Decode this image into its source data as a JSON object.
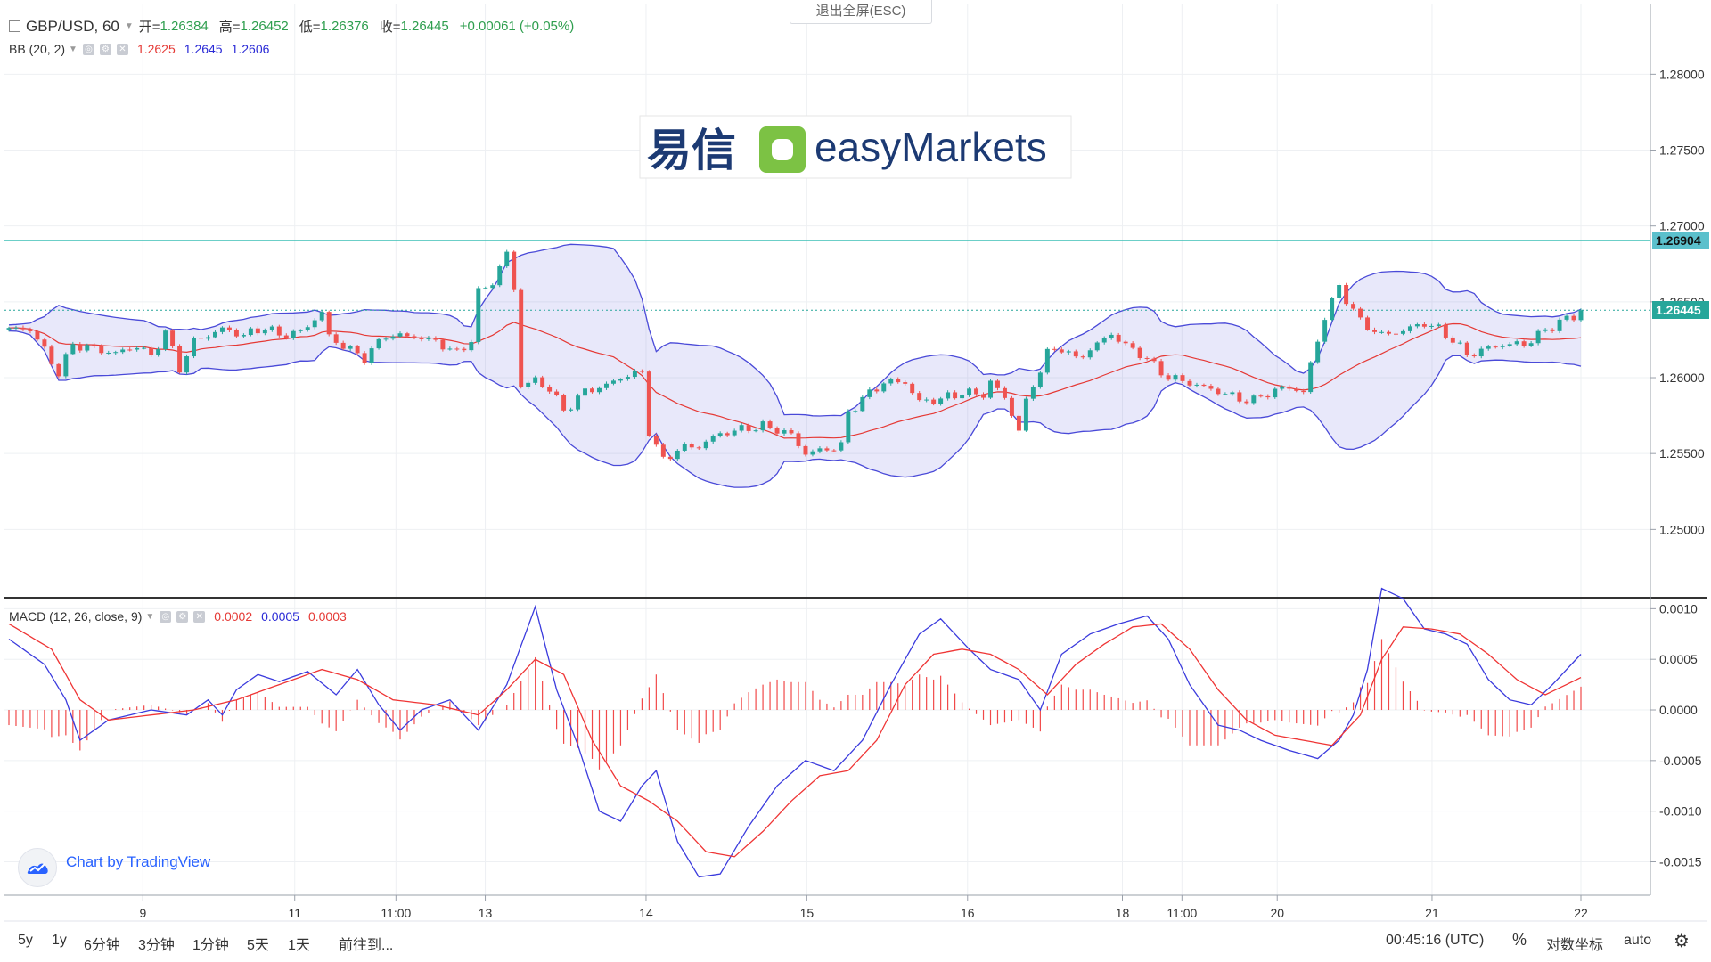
{
  "header": {
    "symbol": "GBP/USD, 60",
    "open_label": "开=",
    "open": "1.26384",
    "high_label": "高=",
    "high": "1.26452",
    "low_label": "低=",
    "low": "1.26376",
    "close_label": "收=",
    "close": "1.26445",
    "change": "+0.00061 (+0.05%)",
    "fullscreen_exit": "退出全屏(ESC)"
  },
  "bb_legend": {
    "name": "BB (20, 2)",
    "v1": "1.2625",
    "v2": "1.2645",
    "v3": "1.2606"
  },
  "macd_legend": {
    "name": "MACD (12, 26, close, 9)",
    "v1": "0.0002",
    "v2": "0.0005",
    "v3": "0.0003"
  },
  "watermark": {
    "brand_cn": "易信",
    "brand_en": "easyMarkets"
  },
  "attribution": "Chart by TradingView",
  "bottom_bar": {
    "ranges": [
      "5y",
      "1y",
      "6分钟",
      "3分钟",
      "1分钟",
      "5天",
      "1天"
    ],
    "goto": "前往到...",
    "clock": "00:45:16 (UTC)",
    "percent": "%",
    "log": "对数坐标",
    "auto": "auto"
  },
  "colors": {
    "up": "#26a69a",
    "down": "#ef5350",
    "bb_band": "#5b5bdb",
    "bb_basis": "#e53935",
    "macd_line": "#3b3bdd",
    "signal_line": "#ef3535",
    "hline": "#3bbfb5"
  },
  "chart_data": [
    {
      "type": "candlestick",
      "title": "GBP/USD, 60",
      "x_ticks": [
        "9",
        "11",
        "11:00",
        "13",
        "14",
        "15",
        "16",
        "18",
        "11:00",
        "20",
        "21",
        "22"
      ],
      "y_ticks": [
        "1.28000",
        "1.27500",
        "1.27000",
        "1.26500",
        "1.26000",
        "1.25500",
        "1.25000"
      ],
      "ylim": [
        1.2455,
        1.2846
      ],
      "horizontal_line": {
        "value": 1.26904,
        "label": "1.26904"
      },
      "last_price": {
        "value": 1.26445,
        "label": "1.26445"
      },
      "close_path": [
        [
          0,
          1.2632
        ],
        [
          3,
          1.2632
        ],
        [
          5,
          1.2618
        ],
        [
          7,
          1.2603
        ],
        [
          9,
          1.2622
        ],
        [
          12,
          1.2619
        ],
        [
          15,
          1.2616
        ],
        [
          18,
          1.2621
        ],
        [
          20,
          1.2614
        ],
        [
          22,
          1.263
        ],
        [
          24,
          1.2606
        ],
        [
          26,
          1.2624
        ],
        [
          30,
          1.2632
        ],
        [
          33,
          1.2628
        ],
        [
          36,
          1.2633
        ],
        [
          38,
          1.2628
        ],
        [
          41,
          1.263
        ],
        [
          44,
          1.2643
        ],
        [
          45,
          1.2627
        ],
        [
          48,
          1.2618
        ],
        [
          50,
          1.2613
        ],
        [
          53,
          1.2628
        ],
        [
          57,
          1.2627
        ],
        [
          60,
          1.2624
        ],
        [
          63,
          1.2616
        ],
        [
          65,
          1.2625
        ],
        [
          66,
          1.2656
        ],
        [
          68,
          1.2663
        ],
        [
          70,
          1.2682
        ],
        [
          71,
          1.2658
        ],
        [
          72,
          1.2595
        ],
        [
          74,
          1.2598
        ],
        [
          76,
          1.2593
        ],
        [
          78,
          1.2578
        ],
        [
          81,
          1.2591
        ],
        [
          84,
          1.2595
        ],
        [
          87,
          1.2602
        ],
        [
          89,
          1.2603
        ],
        [
          90,
          1.2565
        ],
        [
          92,
          1.2545
        ],
        [
          94,
          1.2553
        ],
        [
          97,
          1.2555
        ],
        [
          100,
          1.2563
        ],
        [
          103,
          1.2566
        ],
        [
          106,
          1.2568
        ],
        [
          108,
          1.2566
        ],
        [
          110,
          1.2562
        ],
        [
          112,
          1.255
        ],
        [
          115,
          1.2553
        ],
        [
          117,
          1.2555
        ],
        [
          118,
          1.2577
        ],
        [
          120,
          1.2586
        ],
        [
          123,
          1.2597
        ],
        [
          126,
          1.2597
        ],
        [
          128,
          1.2584
        ],
        [
          131,
          1.2586
        ],
        [
          134,
          1.259
        ],
        [
          137,
          1.2589
        ],
        [
          138,
          1.2597
        ],
        [
          140,
          1.2587
        ],
        [
          142,
          1.2565
        ],
        [
          143,
          1.2584
        ],
        [
          144,
          1.2595
        ],
        [
          146,
          1.2616
        ],
        [
          148,
          1.262
        ],
        [
          150,
          1.2612
        ],
        [
          153,
          1.2622
        ],
        [
          155,
          1.2629
        ],
        [
          157,
          1.2621
        ],
        [
          159,
          1.2616
        ],
        [
          161,
          1.2608
        ],
        [
          163,
          1.26
        ],
        [
          165,
          1.2598
        ],
        [
          167,
          1.2595
        ],
        [
          170,
          1.2591
        ],
        [
          173,
          1.2586
        ],
        [
          175,
          1.2585
        ],
        [
          177,
          1.259
        ],
        [
          180,
          1.2594
        ],
        [
          182,
          1.259
        ],
        [
          183,
          1.2609
        ],
        [
          185,
          1.264
        ],
        [
          187,
          1.266
        ],
        [
          188,
          1.2652
        ],
        [
          190,
          1.2637
        ],
        [
          193,
          1.2628
        ],
        [
          196,
          1.2631
        ],
        [
          199,
          1.2636
        ],
        [
          201,
          1.2632
        ],
        [
          203,
          1.2625
        ],
        [
          205,
          1.2615
        ],
        [
          207,
          1.2618
        ],
        [
          210,
          1.2622
        ],
        [
          213,
          1.2622
        ],
        [
          215,
          1.2628
        ],
        [
          218,
          1.2637
        ],
        [
          220,
          1.264
        ],
        [
          221,
          1.2645
        ]
      ],
      "x_range": [
        0,
        221
      ],
      "indicator": "Bollinger Bands (20, 2)"
    },
    {
      "type": "macd",
      "title": "MACD (12, 26, close, 9)",
      "y_ticks": [
        "0.0010",
        "0.0005",
        "0.0000",
        "-0.0005",
        "-0.0010",
        "-0.0015"
      ],
      "ylim": [
        -0.00183,
        0.0011
      ],
      "x_range": [
        0,
        221
      ],
      "macd_line": [
        [
          0,
          0.0007
        ],
        [
          5,
          0.00045
        ],
        [
          8,
          0.0001
        ],
        [
          10,
          -0.0003
        ],
        [
          14,
          -0.0001
        ],
        [
          20,
          0.0
        ],
        [
          25,
          -5e-05
        ],
        [
          28,
          0.0001
        ],
        [
          30,
          -5e-05
        ],
        [
          32,
          0.0002
        ],
        [
          35,
          0.00035
        ],
        [
          38,
          0.00028
        ],
        [
          42,
          0.00038
        ],
        [
          46,
          0.00015
        ],
        [
          49,
          0.0004
        ],
        [
          52,
          5e-05
        ],
        [
          55,
          -0.0002
        ],
        [
          58,
          0.0
        ],
        [
          62,
          0.0001
        ],
        [
          66,
          -0.0002
        ],
        [
          70,
          0.00025
        ],
        [
          74,
          0.00102
        ],
        [
          77,
          0.0002
        ],
        [
          80,
          -0.00035
        ],
        [
          83,
          -0.001
        ],
        [
          86,
          -0.0011
        ],
        [
          89,
          -0.00075
        ],
        [
          91,
          -0.0006
        ],
        [
          94,
          -0.0013
        ],
        [
          97,
          -0.00165
        ],
        [
          100,
          -0.00162
        ],
        [
          104,
          -0.00115
        ],
        [
          108,
          -0.00075
        ],
        [
          112,
          -0.0005
        ],
        [
          116,
          -0.0006
        ],
        [
          120,
          -0.0003
        ],
        [
          124,
          0.00025
        ],
        [
          128,
          0.00075
        ],
        [
          131,
          0.0009
        ],
        [
          135,
          0.0006
        ],
        [
          138,
          0.0004
        ],
        [
          142,
          0.0003
        ],
        [
          145,
          0.0
        ],
        [
          148,
          0.00055
        ],
        [
          152,
          0.00075
        ],
        [
          156,
          0.00085
        ],
        [
          160,
          0.00093
        ],
        [
          163,
          0.0007
        ],
        [
          166,
          0.00025
        ],
        [
          170,
          -0.00015
        ],
        [
          173,
          -0.0002
        ],
        [
          176,
          -0.0003
        ],
        [
          180,
          -0.0004
        ],
        [
          184,
          -0.00048
        ],
        [
          187,
          -0.0003
        ],
        [
          189,
          -5e-05
        ],
        [
          191,
          0.0004
        ],
        [
          193,
          0.0012
        ],
        [
          196,
          0.0011
        ],
        [
          199,
          0.0008
        ],
        [
          202,
          0.00075
        ],
        [
          205,
          0.00065
        ],
        [
          208,
          0.0003
        ],
        [
          211,
          0.0001
        ],
        [
          214,
          5e-05
        ],
        [
          217,
          0.00025
        ],
        [
          221,
          0.00055
        ]
      ],
      "signal_line": [
        [
          0,
          0.00085
        ],
        [
          6,
          0.0006
        ],
        [
          10,
          0.0001
        ],
        [
          14,
          -0.0001
        ],
        [
          20,
          -5e-05
        ],
        [
          26,
          0.0
        ],
        [
          32,
          0.0001
        ],
        [
          38,
          0.00025
        ],
        [
          44,
          0.0004
        ],
        [
          49,
          0.0003
        ],
        [
          54,
          0.0001
        ],
        [
          60,
          5e-05
        ],
        [
          66,
          -5e-05
        ],
        [
          70,
          0.0002
        ],
        [
          74,
          0.0005
        ],
        [
          78,
          0.00035
        ],
        [
          82,
          -0.0003
        ],
        [
          86,
          -0.00075
        ],
        [
          90,
          -0.0009
        ],
        [
          94,
          -0.0011
        ],
        [
          98,
          -0.0014
        ],
        [
          102,
          -0.00145
        ],
        [
          106,
          -0.0012
        ],
        [
          110,
          -0.0009
        ],
        [
          114,
          -0.00065
        ],
        [
          118,
          -0.0006
        ],
        [
          122,
          -0.0003
        ],
        [
          126,
          0.00025
        ],
        [
          130,
          0.00055
        ],
        [
          134,
          0.0006
        ],
        [
          138,
          0.00055
        ],
        [
          142,
          0.0004
        ],
        [
          146,
          0.00015
        ],
        [
          150,
          0.00045
        ],
        [
          154,
          0.00065
        ],
        [
          158,
          0.00082
        ],
        [
          162,
          0.00085
        ],
        [
          166,
          0.0006
        ],
        [
          170,
          0.0002
        ],
        [
          174,
          -0.0001
        ],
        [
          178,
          -0.00025
        ],
        [
          182,
          -0.0003
        ],
        [
          186,
          -0.00035
        ],
        [
          190,
          -5e-05
        ],
        [
          193,
          0.0005
        ],
        [
          196,
          0.00082
        ],
        [
          200,
          0.0008
        ],
        [
          204,
          0.00075
        ],
        [
          208,
          0.00055
        ],
        [
          212,
          0.0003
        ],
        [
          216,
          0.00015
        ],
        [
          221,
          0.00032
        ]
      ],
      "histogram_note": "histogram = macd_line - signal_line"
    }
  ]
}
